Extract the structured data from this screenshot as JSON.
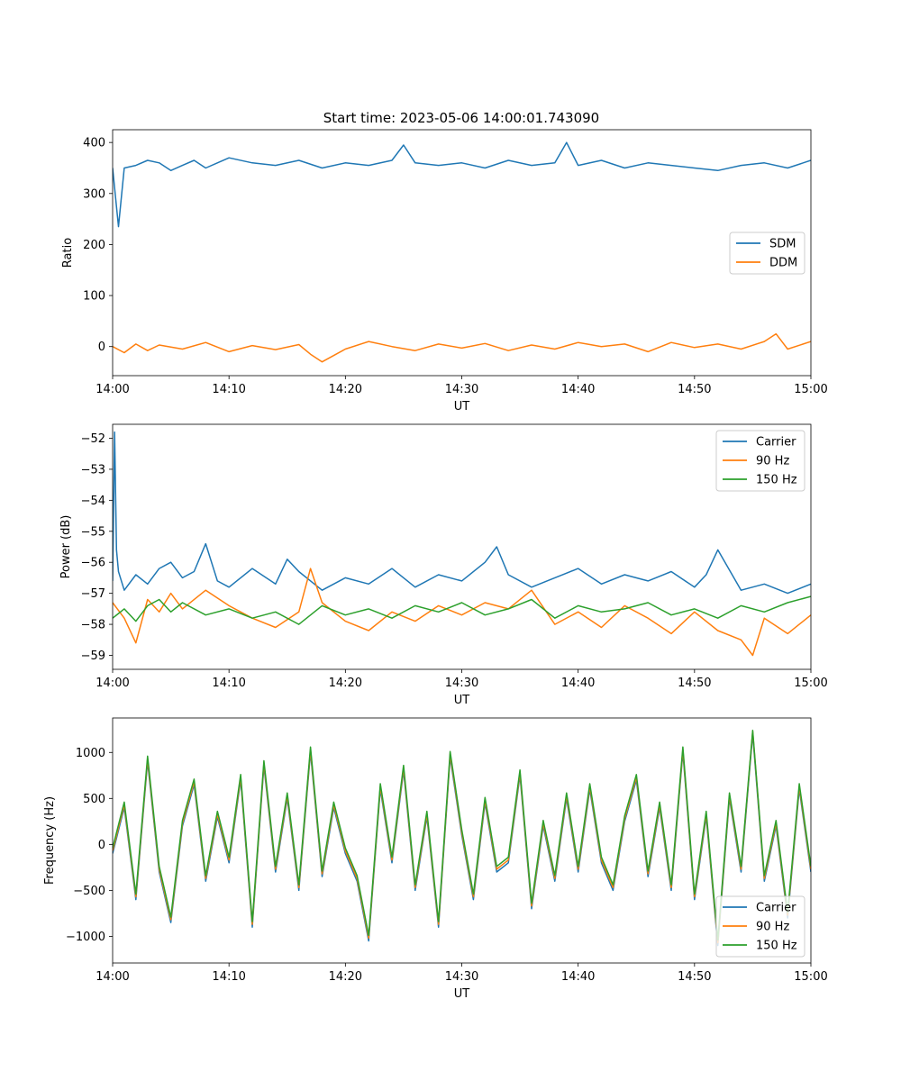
{
  "figure": {
    "title": "Start time: 2023-05-06 14:00:01.743090"
  },
  "chart_data": [
    {
      "type": "line",
      "title": "Start time: 2023-05-06 14:00:01.743090",
      "xlabel": "UT",
      "ylabel": "Ratio",
      "x_range": [
        "14:00",
        "15:00"
      ],
      "xticks": [
        "14:00",
        "14:10",
        "14:20",
        "14:30",
        "14:40",
        "14:50",
        "15:00"
      ],
      "ylim": [
        -57,
        425
      ],
      "yticks": [
        0,
        100,
        200,
        300,
        400
      ],
      "ytick_labels": [
        "0",
        "100",
        "200",
        "300",
        "400"
      ],
      "legend_position": "center-right",
      "series": [
        {
          "name": "SDM",
          "color": "#1f77b4",
          "x": [
            "14:00",
            "14:00:30",
            "14:01",
            "14:02",
            "14:03",
            "14:04",
            "14:05",
            "14:06",
            "14:07",
            "14:08",
            "14:09",
            "14:10",
            "14:12",
            "14:14",
            "14:16",
            "14:18",
            "14:20",
            "14:22",
            "14:24",
            "14:25",
            "14:26",
            "14:28",
            "14:30",
            "14:32",
            "14:34",
            "14:36",
            "14:38",
            "14:39",
            "14:40",
            "14:42",
            "14:44",
            "14:46",
            "14:48",
            "14:50",
            "14:52",
            "14:54",
            "14:56",
            "14:58",
            "15:00"
          ],
          "y": [
            350,
            235,
            350,
            355,
            365,
            360,
            345,
            355,
            365,
            350,
            360,
            370,
            360,
            355,
            365,
            350,
            360,
            355,
            365,
            395,
            360,
            355,
            360,
            350,
            365,
            355,
            360,
            400,
            355,
            365,
            350,
            360,
            355,
            350,
            345,
            355,
            360,
            350,
            365
          ]
        },
        {
          "name": "DDM",
          "color": "#ff7f0e",
          "x": [
            "14:00",
            "14:01",
            "14:02",
            "14:03",
            "14:04",
            "14:06",
            "14:08",
            "14:10",
            "14:12",
            "14:14",
            "14:16",
            "14:17",
            "14:18",
            "14:20",
            "14:22",
            "14:24",
            "14:26",
            "14:28",
            "14:30",
            "14:32",
            "14:34",
            "14:36",
            "14:38",
            "14:40",
            "14:42",
            "14:44",
            "14:46",
            "14:48",
            "14:50",
            "14:52",
            "14:54",
            "14:56",
            "14:57",
            "14:58",
            "15:00"
          ],
          "y": [
            0,
            -12,
            5,
            -8,
            3,
            -5,
            8,
            -10,
            2,
            -6,
            4,
            -15,
            -30,
            -5,
            10,
            0,
            -8,
            5,
            -3,
            6,
            -8,
            3,
            -5,
            8,
            0,
            5,
            -10,
            8,
            -2,
            5,
            -5,
            10,
            25,
            -5,
            10
          ]
        }
      ]
    },
    {
      "type": "line",
      "xlabel": "UT",
      "ylabel": "Power (dB)",
      "x_range": [
        "14:00",
        "15:00"
      ],
      "xticks": [
        "14:00",
        "14:10",
        "14:20",
        "14:30",
        "14:40",
        "14:50",
        "15:00"
      ],
      "ylim": [
        -59.45,
        -51.55
      ],
      "yticks": [
        -59,
        -58,
        -57,
        -56,
        -55,
        -54,
        -53,
        -52
      ],
      "ytick_labels": [
        "−59",
        "−58",
        "−57",
        "−56",
        "−55",
        "−54",
        "−53",
        "−52"
      ],
      "legend_position": "top-right",
      "series": [
        {
          "name": "Carrier",
          "color": "#1f77b4",
          "x": [
            "14:00",
            "14:00:10",
            "14:00:20",
            "14:00:30",
            "14:01",
            "14:02",
            "14:03",
            "14:04",
            "14:05",
            "14:06",
            "14:07",
            "14:08",
            "14:09",
            "14:10",
            "14:12",
            "14:14",
            "14:15",
            "14:16",
            "14:18",
            "14:20",
            "14:22",
            "14:24",
            "14:26",
            "14:28",
            "14:30",
            "14:32",
            "14:33",
            "14:34",
            "14:36",
            "14:38",
            "14:40",
            "14:42",
            "14:44",
            "14:46",
            "14:48",
            "14:50",
            "14:51",
            "14:52",
            "14:54",
            "14:56",
            "14:58",
            "15:00"
          ],
          "y": [
            -56.6,
            -51.8,
            -55.6,
            -56.3,
            -56.9,
            -56.4,
            -56.7,
            -56.2,
            -56.0,
            -56.5,
            -56.3,
            -55.4,
            -56.6,
            -56.8,
            -56.2,
            -56.7,
            -55.9,
            -56.3,
            -56.9,
            -56.5,
            -56.7,
            -56.2,
            -56.8,
            -56.4,
            -56.6,
            -56.0,
            -55.5,
            -56.4,
            -56.8,
            -56.5,
            -56.2,
            -56.7,
            -56.4,
            -56.6,
            -56.3,
            -56.8,
            -56.4,
            -55.6,
            -56.9,
            -56.7,
            -57.0,
            -56.7
          ]
        },
        {
          "name": "90 Hz",
          "color": "#ff7f0e",
          "x": [
            "14:00",
            "14:01",
            "14:02",
            "14:03",
            "14:04",
            "14:05",
            "14:06",
            "14:08",
            "14:10",
            "14:12",
            "14:14",
            "14:16",
            "14:17",
            "14:18",
            "14:20",
            "14:22",
            "14:24",
            "14:26",
            "14:28",
            "14:30",
            "14:32",
            "14:34",
            "14:36",
            "14:38",
            "14:40",
            "14:42",
            "14:44",
            "14:46",
            "14:48",
            "14:50",
            "14:52",
            "14:54",
            "14:55",
            "14:56",
            "14:58",
            "15:00"
          ],
          "y": [
            -57.3,
            -57.8,
            -58.6,
            -57.2,
            -57.6,
            -57.0,
            -57.5,
            -56.9,
            -57.4,
            -57.8,
            -58.1,
            -57.6,
            -56.2,
            -57.3,
            -57.9,
            -58.2,
            -57.6,
            -57.9,
            -57.4,
            -57.7,
            -57.3,
            -57.5,
            -56.9,
            -58.0,
            -57.6,
            -58.1,
            -57.4,
            -57.8,
            -58.3,
            -57.6,
            -58.2,
            -58.5,
            -59.0,
            -57.8,
            -58.3,
            -57.7
          ]
        },
        {
          "name": "150 Hz",
          "color": "#2ca02c",
          "x": [
            "14:00",
            "14:01",
            "14:02",
            "14:03",
            "14:04",
            "14:05",
            "14:06",
            "14:08",
            "14:10",
            "14:12",
            "14:14",
            "14:16",
            "14:18",
            "14:20",
            "14:22",
            "14:24",
            "14:26",
            "14:28",
            "14:30",
            "14:32",
            "14:34",
            "14:36",
            "14:38",
            "14:40",
            "14:42",
            "14:44",
            "14:46",
            "14:48",
            "14:50",
            "14:52",
            "14:54",
            "14:56",
            "14:58",
            "15:00"
          ],
          "y": [
            -57.8,
            -57.5,
            -57.9,
            -57.4,
            -57.2,
            -57.6,
            -57.3,
            -57.7,
            -57.5,
            -57.8,
            -57.6,
            -58.0,
            -57.4,
            -57.7,
            -57.5,
            -57.8,
            -57.4,
            -57.6,
            -57.3,
            -57.7,
            -57.5,
            -57.2,
            -57.8,
            -57.4,
            -57.6,
            -57.5,
            -57.3,
            -57.7,
            -57.5,
            -57.8,
            -57.4,
            -57.6,
            -57.3,
            -57.1
          ]
        }
      ]
    },
    {
      "type": "line",
      "xlabel": "UT",
      "ylabel": "Frequency (Hz)",
      "x_range": [
        "14:00",
        "15:00"
      ],
      "xticks": [
        "14:00",
        "14:10",
        "14:20",
        "14:30",
        "14:40",
        "14:50",
        "15:00"
      ],
      "ylim": [
        -1290,
        1375
      ],
      "yticks": [
        -1000,
        -500,
        0,
        500,
        1000
      ],
      "ytick_labels": [
        "−1000",
        "−500",
        "0",
        "500",
        "1000"
      ],
      "legend_position": "lower-right",
      "series": [
        {
          "name": "Carrier",
          "color": "#1f77b4",
          "x": [
            "14:00",
            "14:01",
            "14:02",
            "14:03",
            "14:04",
            "14:05",
            "14:06",
            "14:07",
            "14:08",
            "14:09",
            "14:10",
            "14:11",
            "14:12",
            "14:13",
            "14:14",
            "14:15",
            "14:16",
            "14:17",
            "14:18",
            "14:19",
            "14:20",
            "14:21",
            "14:22",
            "14:23",
            "14:24",
            "14:25",
            "14:26",
            "14:27",
            "14:28",
            "14:29",
            "14:30",
            "14:31",
            "14:32",
            "14:33",
            "14:34",
            "14:35",
            "14:36",
            "14:37",
            "14:38",
            "14:39",
            "14:40",
            "14:41",
            "14:42",
            "14:43",
            "14:44",
            "14:45",
            "14:46",
            "14:47",
            "14:48",
            "14:49",
            "14:50",
            "14:51",
            "14:52",
            "14:53",
            "14:54",
            "14:55",
            "14:56",
            "14:57",
            "14:58",
            "14:59",
            "15:00"
          ],
          "y": [
            -100,
            400,
            -600,
            900,
            -300,
            -850,
            200,
            650,
            -400,
            300,
            -200,
            700,
            -900,
            850,
            -300,
            500,
            -500,
            1000,
            -350,
            400,
            -100,
            -400,
            -1050,
            600,
            -200,
            800,
            -500,
            300,
            -900,
            950,
            100,
            -600,
            450,
            -300,
            -200,
            750,
            -700,
            200,
            -400,
            500,
            -300,
            600,
            -200,
            -500,
            250,
            700,
            -350,
            400,
            -500,
            1000,
            -600,
            300,
            -1100,
            500,
            -300,
            1200,
            -400,
            200,
            -800,
            600,
            -300
          ]
        },
        {
          "name": "90 Hz",
          "color": "#ff7f0e",
          "x": [
            "14:00",
            "14:01",
            "14:02",
            "14:03",
            "14:04",
            "14:05",
            "14:06",
            "14:07",
            "14:08",
            "14:09",
            "14:10",
            "14:11",
            "14:12",
            "14:13",
            "14:14",
            "14:15",
            "14:16",
            "14:17",
            "14:18",
            "14:19",
            "14:20",
            "14:21",
            "14:22",
            "14:23",
            "14:24",
            "14:25",
            "14:26",
            "14:27",
            "14:28",
            "14:29",
            "14:30",
            "14:31",
            "14:32",
            "14:33",
            "14:34",
            "14:35",
            "14:36",
            "14:37",
            "14:38",
            "14:39",
            "14:40",
            "14:41",
            "14:42",
            "14:43",
            "14:44",
            "14:45",
            "14:46",
            "14:47",
            "14:48",
            "14:49",
            "14:50",
            "14:51",
            "14:52",
            "14:53",
            "14:54",
            "14:55",
            "14:56",
            "14:57",
            "14:58",
            "14:59",
            "15:00"
          ],
          "y": [
            -70,
            430,
            -570,
            930,
            -270,
            -820,
            230,
            680,
            -370,
            330,
            -170,
            730,
            -870,
            880,
            -270,
            530,
            -470,
            1030,
            -320,
            430,
            -70,
            -370,
            -1020,
            630,
            -170,
            830,
            -470,
            330,
            -870,
            980,
            130,
            -570,
            480,
            -270,
            -170,
            780,
            -670,
            230,
            -370,
            530,
            -270,
            630,
            -170,
            -470,
            280,
            730,
            -320,
            430,
            -470,
            1030,
            -570,
            330,
            -1070,
            530,
            -270,
            1230,
            -370,
            230,
            -770,
            630,
            -270
          ]
        },
        {
          "name": "150 Hz",
          "color": "#2ca02c",
          "x": [
            "14:00",
            "14:01",
            "14:02",
            "14:03",
            "14:04",
            "14:05",
            "14:06",
            "14:07",
            "14:08",
            "14:09",
            "14:10",
            "14:11",
            "14:12",
            "14:13",
            "14:14",
            "14:15",
            "14:16",
            "14:17",
            "14:18",
            "14:19",
            "14:20",
            "14:21",
            "14:22",
            "14:23",
            "14:24",
            "14:25",
            "14:26",
            "14:27",
            "14:28",
            "14:29",
            "14:30",
            "14:31",
            "14:32",
            "14:33",
            "14:34",
            "14:35",
            "14:36",
            "14:37",
            "14:38",
            "14:39",
            "14:40",
            "14:41",
            "14:42",
            "14:43",
            "14:44",
            "14:45",
            "14:46",
            "14:47",
            "14:48",
            "14:49",
            "14:50",
            "14:51",
            "14:52",
            "14:53",
            "14:54",
            "14:55",
            "14:56",
            "14:57",
            "14:58",
            "14:59",
            "15:00"
          ],
          "y": [
            -40,
            460,
            -540,
            960,
            -240,
            -790,
            260,
            710,
            -340,
            360,
            -140,
            760,
            -840,
            910,
            -240,
            560,
            -440,
            1060,
            -290,
            460,
            -40,
            -340,
            -990,
            660,
            -140,
            860,
            -440,
            360,
            -840,
            1010,
            160,
            -540,
            510,
            -240,
            -140,
            810,
            -640,
            260,
            -340,
            560,
            -240,
            660,
            -140,
            -440,
            310,
            760,
            -290,
            460,
            -440,
            1060,
            -540,
            360,
            -1040,
            560,
            -240,
            1240,
            -340,
            260,
            -740,
            660,
            -240
          ]
        }
      ]
    }
  ]
}
